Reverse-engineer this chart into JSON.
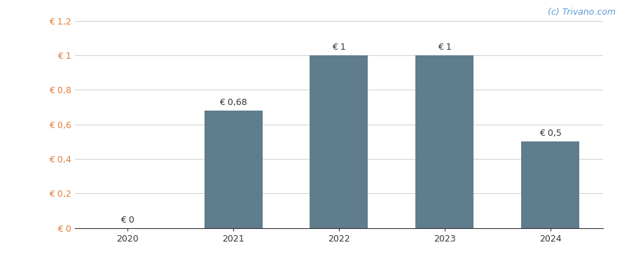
{
  "categories": [
    "2020",
    "2021",
    "2022",
    "2023",
    "2024"
  ],
  "values": [
    0,
    0.68,
    1.0,
    1.0,
    0.5
  ],
  "bar_labels": [
    "€ 0",
    "€ 0,68",
    "€ 1",
    "€ 1",
    "€ 0,5"
  ],
  "bar_color": "#5f7d8c",
  "background_color": "#ffffff",
  "ylim": [
    0,
    1.2
  ],
  "yticks": [
    0,
    0.2,
    0.4,
    0.6,
    0.8,
    1.0,
    1.2
  ],
  "ytick_labels": [
    "€ 0",
    "€ 0,2",
    "€ 0,4",
    "€ 0,6",
    "€ 0,8",
    "€ 1",
    "€ 1,2"
  ],
  "ytick_color": "#e07b39",
  "watermark": "(c) Trivano.com",
  "watermark_color": "#5b9bd5",
  "bar_width": 0.55,
  "label_fontsize": 9,
  "tick_fontsize": 9,
  "watermark_fontsize": 9,
  "grid_color": "#d0d0d0",
  "label_color": "#333333",
  "xtick_color": "#333333"
}
